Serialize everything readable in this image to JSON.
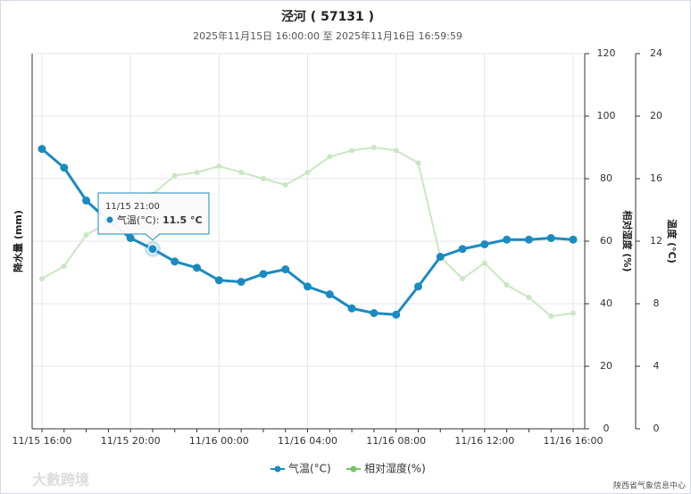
{
  "chart_data": {
    "type": "line",
    "title": "泾河 ( 57131 )",
    "subtitle": "2025年11月15日 16:00:00 至 2025年11月16日 16:59:59",
    "y_label": "降水量 (mm)",
    "y2_label": "相对湿度 (%)",
    "y3_label": "温度 (°C)",
    "categories": [
      "11/15 16:00",
      null,
      null,
      null,
      "11/15 20:00",
      null,
      null,
      null,
      "11/16 00:00",
      null,
      null,
      null,
      "11/16 04:00",
      null,
      null,
      null,
      "11/16 08:00",
      null,
      null,
      null,
      "11/16 12:00",
      null,
      null,
      null,
      "11/16 16:00"
    ],
    "y2lim": [
      0,
      120
    ],
    "y2ticks": [
      0,
      20,
      40,
      60,
      80,
      100,
      120
    ],
    "y3lim": [
      0,
      24
    ],
    "y3ticks": [
      0,
      4,
      8,
      12,
      16,
      20,
      24
    ],
    "grid": true,
    "legend": "bottom",
    "series": [
      {
        "name": "气温(°C)",
        "color": "#1a8bc0",
        "axis": "y3",
        "values": [
          17.9,
          16.7,
          14.6,
          13.3,
          12.2,
          11.5,
          10.7,
          10.3,
          9.5,
          9.4,
          9.9,
          10.2,
          9.1,
          8.6,
          7.7,
          7.4,
          7.3,
          9.1,
          11.0,
          11.5,
          11.8,
          12.1,
          12.1,
          12.2,
          12.1
        ]
      },
      {
        "name": "相对湿度(%)",
        "color": "#c9e7c2",
        "axis": "y2",
        "values": [
          48,
          52,
          62,
          66,
          71,
          75,
          81,
          82,
          84,
          82,
          80,
          78,
          82,
          87,
          89,
          90,
          89,
          85,
          55,
          48,
          53,
          46,
          42,
          36,
          37
        ]
      }
    ],
    "tooltip": {
      "category": "11/15 21:00",
      "label": "气温(°C): ",
      "value_label": "11.5 °C"
    },
    "source": "陕西省气象信息中心",
    "watermark": "大數跨境"
  }
}
